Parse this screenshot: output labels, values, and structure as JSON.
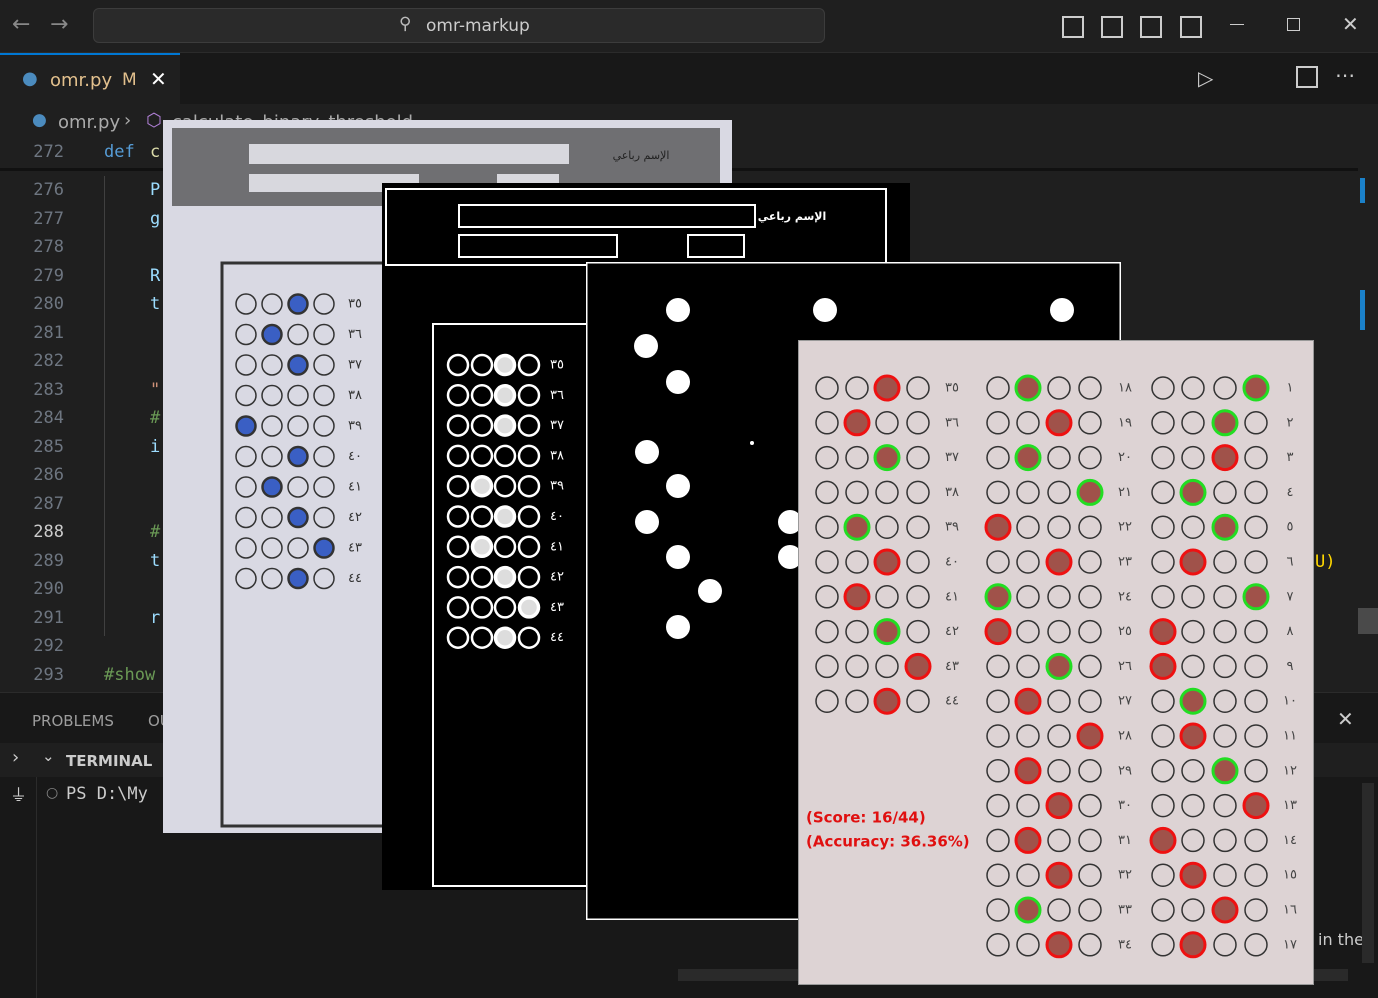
{
  "title_bar": {
    "search": "omr-markup"
  },
  "tab": {
    "name": "omr.py",
    "status": "M"
  },
  "breadcrumb": {
    "file": "omr.py",
    "symbol": "calculate_binary_threshold"
  },
  "editor": {
    "lines": [
      {
        "number": 272,
        "keyword": "def",
        "text": "c"
      },
      {
        "number": 276,
        "text": "P"
      },
      {
        "number": 277,
        "text": "g"
      },
      {
        "number": 278
      },
      {
        "number": 279,
        "text": "R"
      },
      {
        "number": 280,
        "text": "t"
      },
      {
        "number": 281
      },
      {
        "number": 282
      },
      {
        "number": 283,
        "text": "\""
      },
      {
        "number": 284,
        "text": "#"
      },
      {
        "number": 285,
        "text": "i"
      },
      {
        "number": 286
      },
      {
        "number": 287
      },
      {
        "number": 288,
        "text": "#",
        "active": true
      },
      {
        "number": 289,
        "text": "t"
      },
      {
        "number": 290
      },
      {
        "number": 291,
        "text": "r"
      },
      {
        "number": 292
      },
      {
        "number": 293,
        "text": "#show",
        "outdent": true
      }
    ],
    "overflow_text": "U)"
  },
  "panel": {
    "tabs": [
      "PROBLEMS",
      "OU"
    ],
    "terminal_title": "TERMINAL",
    "prompt": "PS D:\\My",
    "overflow_text": "in the"
  },
  "original_sheet": {
    "header": "الإسم رباعي",
    "rows": [
      {
        "label": "٣٥",
        "marked": 2
      },
      {
        "label": "٣٦",
        "marked": 1
      },
      {
        "label": "٣٧",
        "marked": 2
      },
      {
        "label": "٣٨",
        "marked": null
      },
      {
        "label": "٣٩",
        "marked": 0
      },
      {
        "label": "٤٠",
        "marked": 2
      },
      {
        "label": "٤١",
        "marked": 1
      },
      {
        "label": "٤٢",
        "marked": 2
      },
      {
        "label": "٤٣",
        "marked": 3
      },
      {
        "label": "٤٤",
        "marked": 2
      }
    ]
  },
  "threshold_sheet": {
    "header": "الإسم رباعي",
    "rows": [
      {
        "label": "٣٥",
        "marked": 2
      },
      {
        "label": "٣٦",
        "marked": 2
      },
      {
        "label": "٣٧",
        "marked": 2
      },
      {
        "label": "٣٨",
        "marked": null
      },
      {
        "label": "٣٩",
        "marked": 1
      },
      {
        "label": "٤٠",
        "marked": 2
      },
      {
        "label": "٤١",
        "marked": 1
      },
      {
        "label": "٤٢",
        "marked": 2
      },
      {
        "label": "٤٣",
        "marked": 3
      },
      {
        "label": "٤٤",
        "marked": 2
      }
    ]
  },
  "result_sheet": {
    "score": "(Score: 16/44)",
    "accuracy": "(Accuracy: 36.36%)",
    "columns": [
      [
        {
          "label": "٣٥",
          "marked": 2,
          "correct": false
        },
        {
          "label": "٣٦",
          "marked": 1,
          "correct": false
        },
        {
          "label": "٣٧",
          "marked": 2,
          "correct": true
        },
        {
          "label": "٣٨",
          "marked": null,
          "correct": false
        },
        {
          "label": "٣٩",
          "marked": 1,
          "correct": true
        },
        {
          "label": "٤٠",
          "marked": 2,
          "correct": false
        },
        {
          "label": "٤١",
          "marked": 1,
          "correct": false
        },
        {
          "label": "٤٢",
          "marked": 2,
          "correct": true
        },
        {
          "label": "٤٣",
          "marked": 3,
          "correct": false
        },
        {
          "label": "٤٤",
          "marked": 2,
          "correct": false
        }
      ],
      [
        {
          "label": "١٨",
          "marked": 1,
          "correct": true
        },
        {
          "label": "١٩",
          "marked": 2,
          "correct": false
        },
        {
          "label": "٢٠",
          "marked": 1,
          "correct": true
        },
        {
          "label": "٢١",
          "marked": 3,
          "correct": true
        },
        {
          "label": "٢٢",
          "marked": 0,
          "correct": false
        },
        {
          "label": "٢٣",
          "marked": 2,
          "correct": false
        },
        {
          "label": "٢٤",
          "marked": 0,
          "correct": true
        },
        {
          "label": "٢٥",
          "marked": 0,
          "correct": false
        },
        {
          "label": "٢٦",
          "marked": 2,
          "correct": true
        },
        {
          "label": "٢٧",
          "marked": 1,
          "correct": false
        },
        {
          "label": "٢٨",
          "marked": 3,
          "correct": false
        },
        {
          "label": "٢٩",
          "marked": 1,
          "correct": false
        },
        {
          "label": "٣٠",
          "marked": 2,
          "correct": false
        },
        {
          "label": "٣١",
          "marked": 1,
          "correct": false
        },
        {
          "label": "٣٢",
          "marked": 2,
          "correct": false
        },
        {
          "label": "٣٣",
          "marked": 1,
          "correct": true
        },
        {
          "label": "٣٤",
          "marked": 2,
          "correct": false
        }
      ],
      [
        {
          "label": "١",
          "marked": 3,
          "correct": true
        },
        {
          "label": "٢",
          "marked": 2,
          "correct": true
        },
        {
          "label": "٣",
          "marked": 2,
          "correct": false
        },
        {
          "label": "٤",
          "marked": 1,
          "correct": true
        },
        {
          "label": "٥",
          "marked": 2,
          "correct": true
        },
        {
          "label": "٦",
          "marked": 1,
          "correct": false
        },
        {
          "label": "٧",
          "marked": 3,
          "correct": true
        },
        {
          "label": "٨",
          "marked": 0,
          "correct": false
        },
        {
          "label": "٩",
          "marked": 0,
          "correct": false
        },
        {
          "label": "١٠",
          "marked": 1,
          "correct": true
        },
        {
          "label": "١١",
          "marked": 1,
          "correct": false
        },
        {
          "label": "١٢",
          "marked": 2,
          "correct": true
        },
        {
          "label": "١٣",
          "marked": 3,
          "correct": false
        },
        {
          "label": "١٤",
          "marked": 0,
          "correct": false
        },
        {
          "label": "١٥",
          "marked": 1,
          "correct": false
        },
        {
          "label": "١٦",
          "marked": 2,
          "correct": false
        },
        {
          "label": "١٧",
          "marked": 1,
          "correct": false
        }
      ]
    ]
  }
}
